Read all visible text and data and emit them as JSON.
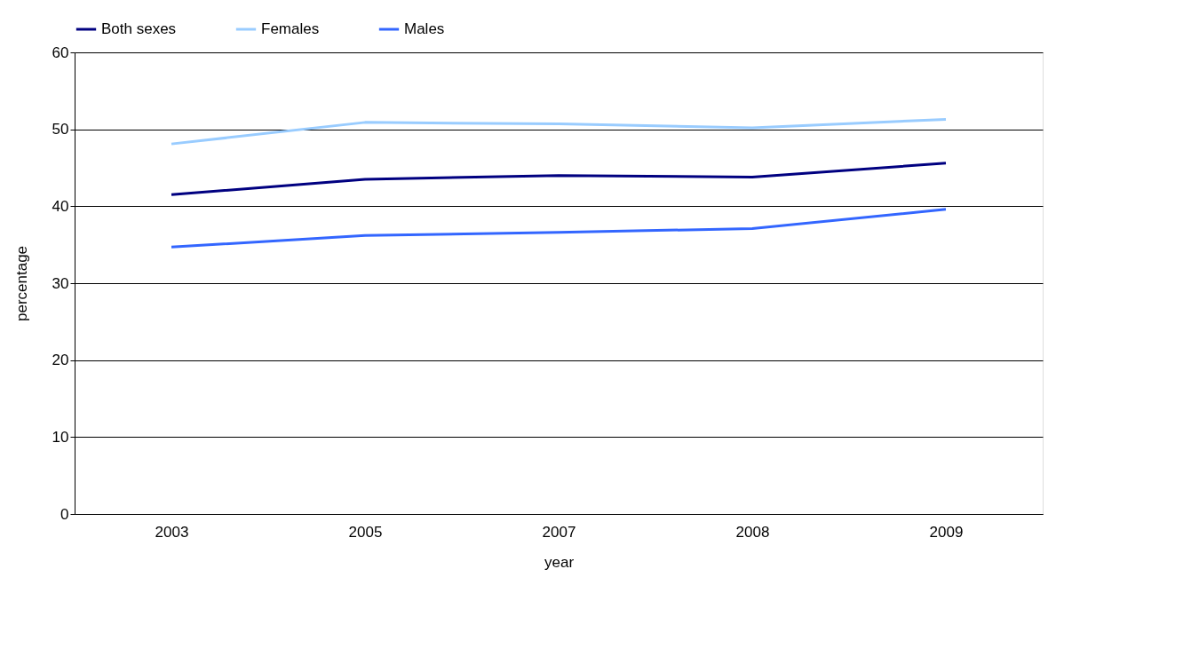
{
  "chart_data": {
    "type": "line",
    "xlabel": "year",
    "ylabel": "percentage",
    "categories": [
      "2003",
      "2005",
      "2007",
      "2008",
      "2009"
    ],
    "series": [
      {
        "name": "Both sexes",
        "color": "#000080",
        "values": [
          41.5,
          43.5,
          44.0,
          43.8,
          45.6
        ]
      },
      {
        "name": "Females",
        "color": "#99ccff",
        "values": [
          48.1,
          50.9,
          50.7,
          50.2,
          51.3
        ]
      },
      {
        "name": "Males",
        "color": "#3366ff",
        "values": [
          34.7,
          36.2,
          36.6,
          37.1,
          39.6
        ]
      }
    ],
    "ylim": [
      0,
      60
    ],
    "yticks": [
      0,
      10,
      20,
      30,
      40,
      50,
      60
    ],
    "grid": "y",
    "legend": "top",
    "marker": "none",
    "line_style": "solid"
  }
}
